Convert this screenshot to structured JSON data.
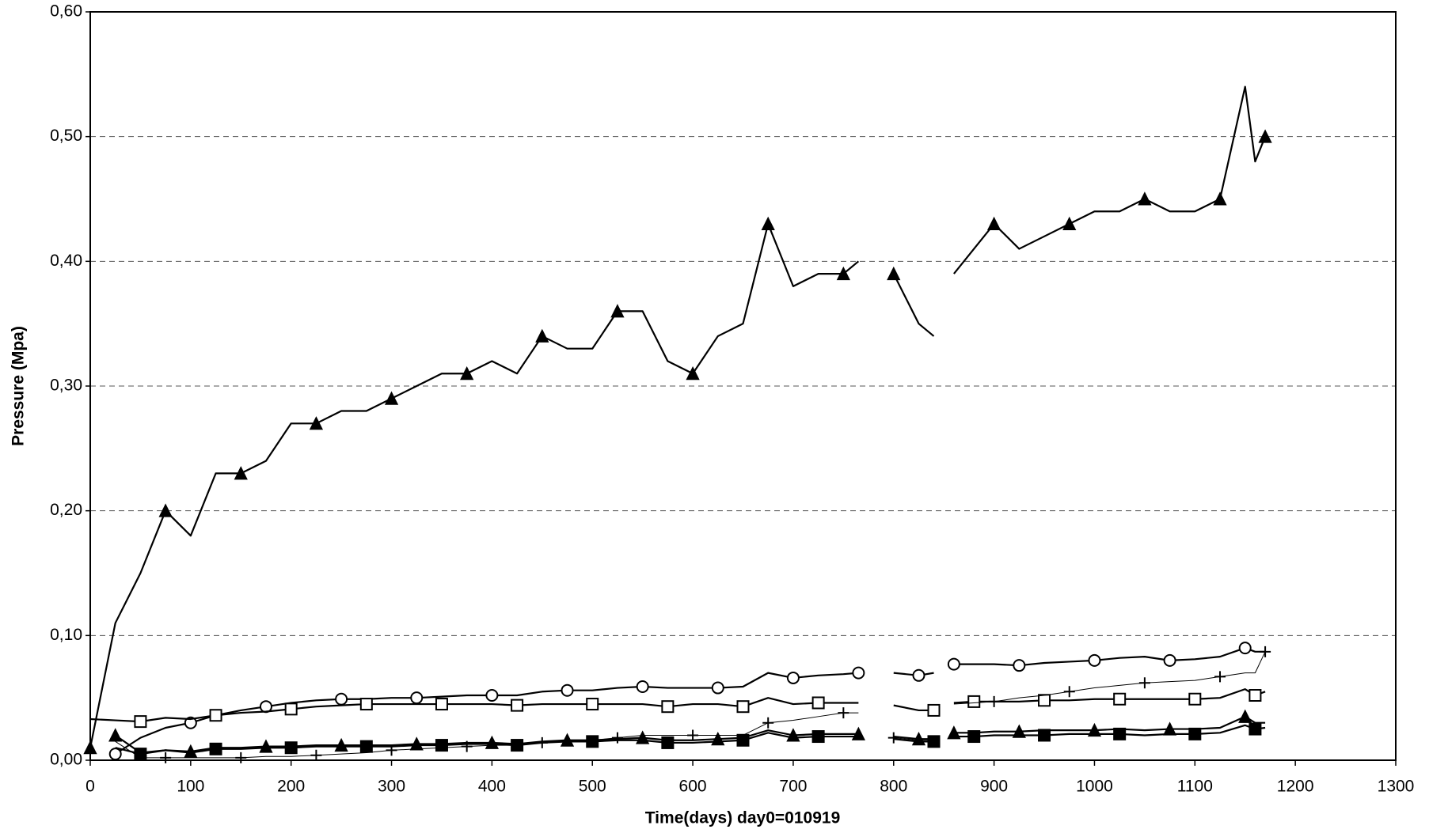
{
  "chart_data": {
    "type": "line",
    "x_label": "Time(days)  day0=010919",
    "y_label": "Pressure (Mpa)",
    "xlim": [
      0,
      1300
    ],
    "xticks": [
      0,
      100,
      200,
      300,
      400,
      500,
      600,
      700,
      800,
      900,
      1000,
      1100,
      1200,
      1300
    ],
    "ylim": [
      0,
      0.6
    ],
    "yticks": [
      {
        "value": 0,
        "label": "0,00"
      },
      {
        "value": 0.1,
        "label": "0,10"
      },
      {
        "value": 0.2,
        "label": "0,20"
      },
      {
        "value": 0.3,
        "label": "0,30"
      },
      {
        "value": 0.4,
        "label": "0,40"
      },
      {
        "value": 0.5,
        "label": "0,50"
      },
      {
        "value": 0.6,
        "label": "0,60"
      }
    ],
    "grid": true,
    "x": [
      0,
      25,
      50,
      75,
      100,
      125,
      150,
      175,
      200,
      225,
      250,
      275,
      300,
      325,
      350,
      375,
      400,
      425,
      450,
      475,
      500,
      525,
      550,
      575,
      600,
      625,
      650,
      675,
      700,
      725,
      750,
      765,
      780,
      800,
      825,
      840,
      850,
      860,
      880,
      900,
      925,
      950,
      975,
      1000,
      1025,
      1050,
      1075,
      1100,
      1125,
      1150,
      1160,
      1170
    ],
    "series": [
      {
        "color": "#000000",
        "marker": "triangle",
        "width": 2.2,
        "values": [
          0.01,
          0.11,
          0.15,
          0.2,
          0.18,
          0.23,
          0.23,
          0.24,
          0.27,
          0.27,
          0.28,
          0.28,
          0.29,
          0.3,
          0.31,
          0.31,
          0.32,
          0.31,
          0.34,
          0.33,
          0.33,
          0.36,
          0.36,
          0.32,
          0.31,
          0.34,
          0.35,
          0.43,
          0.38,
          0.39,
          0.39,
          0.4,
          null,
          0.39,
          0.35,
          0.34,
          null,
          0.39,
          0.41,
          0.43,
          0.41,
          0.42,
          0.43,
          0.44,
          0.44,
          0.45,
          0.44,
          0.44,
          0.45,
          0.54,
          0.48,
          0.5
        ]
      },
      {
        "color": "#000000",
        "marker": "circle",
        "width": 2.2,
        "values": [
          null,
          0.005,
          0.018,
          0.026,
          0.03,
          0.036,
          0.04,
          0.043,
          0.046,
          0.048,
          0.049,
          0.049,
          0.05,
          0.05,
          0.051,
          0.052,
          0.052,
          0.052,
          0.055,
          0.056,
          0.056,
          0.058,
          0.059,
          0.058,
          0.058,
          0.058,
          0.059,
          0.07,
          0.066,
          0.068,
          0.069,
          0.07,
          null,
          0.07,
          0.068,
          0.07,
          null,
          0.077,
          0.077,
          0.077,
          0.076,
          0.078,
          0.079,
          0.08,
          0.082,
          0.083,
          0.08,
          0.081,
          0.083,
          0.09,
          0.087,
          0.087
        ]
      },
      {
        "color": "#000000",
        "marker": "square",
        "width": 2.2,
        "values": [
          0.033,
          0.032,
          0.031,
          0.034,
          0.033,
          0.036,
          0.038,
          0.039,
          0.041,
          0.043,
          0.044,
          0.045,
          0.045,
          0.045,
          0.045,
          0.045,
          0.045,
          0.044,
          0.045,
          0.045,
          0.045,
          0.045,
          0.045,
          0.043,
          0.045,
          0.045,
          0.043,
          0.05,
          0.045,
          0.046,
          0.046,
          0.046,
          null,
          0.044,
          0.04,
          0.04,
          null,
          0.046,
          0.047,
          0.047,
          0.047,
          0.048,
          0.048,
          0.049,
          0.049,
          0.049,
          0.049,
          0.049,
          0.05,
          0.057,
          0.052,
          0.055
        ]
      },
      {
        "color": "#000000",
        "marker": "plus",
        "width": 1,
        "values": [
          null,
          0.015,
          0.002,
          0.002,
          0.002,
          0.002,
          0.002,
          0.003,
          0.003,
          0.004,
          0.005,
          0.006,
          0.008,
          0.009,
          0.01,
          0.011,
          0.012,
          0.012,
          0.014,
          0.015,
          0.016,
          0.018,
          0.02,
          0.02,
          0.02,
          0.02,
          0.02,
          0.03,
          0.032,
          0.035,
          0.038,
          0.038,
          null,
          0.018,
          0.016,
          0.016,
          null,
          0.045,
          0.046,
          0.047,
          0.05,
          0.052,
          0.055,
          0.058,
          0.06,
          0.062,
          0.063,
          0.064,
          0.067,
          0.07,
          0.07,
          0.087
        ]
      },
      {
        "color": "#000000",
        "marker": "filled-triangle",
        "width": 2.2,
        "values": [
          null,
          0.02,
          0.006,
          0.008,
          0.007,
          0.01,
          0.01,
          0.011,
          0.011,
          0.012,
          0.012,
          0.012,
          0.012,
          0.013,
          0.013,
          0.014,
          0.014,
          0.013,
          0.015,
          0.016,
          0.016,
          0.017,
          0.018,
          0.016,
          0.016,
          0.017,
          0.018,
          0.024,
          0.02,
          0.021,
          0.021,
          0.021,
          null,
          0.019,
          0.017,
          0.017,
          null,
          0.022,
          0.022,
          0.023,
          0.023,
          0.024,
          0.024,
          0.024,
          0.025,
          0.024,
          0.025,
          0.025,
          0.026,
          0.035,
          0.03,
          0.03
        ]
      },
      {
        "color": "#000000",
        "marker": "filled-square",
        "width": 2.2,
        "values": [
          null,
          0.01,
          0.005,
          0.008,
          0.006,
          0.009,
          0.009,
          0.01,
          0.01,
          0.011,
          0.011,
          0.011,
          0.011,
          0.012,
          0.012,
          0.013,
          0.013,
          0.012,
          0.014,
          0.015,
          0.015,
          0.016,
          0.016,
          0.014,
          0.014,
          0.015,
          0.016,
          0.022,
          0.018,
          0.019,
          0.019,
          0.019,
          null,
          0.017,
          0.015,
          0.015,
          null,
          0.019,
          0.019,
          0.02,
          0.02,
          0.02,
          0.021,
          0.021,
          0.021,
          0.02,
          0.021,
          0.021,
          0.022,
          0.028,
          0.025,
          0.026
        ]
      }
    ]
  }
}
